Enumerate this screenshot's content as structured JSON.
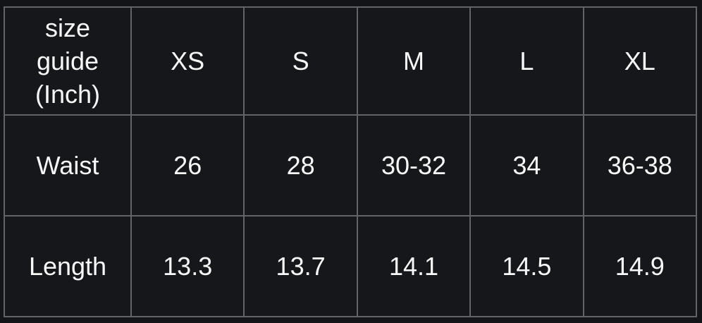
{
  "chart_data": {
    "type": "table",
    "title": "size guide (Inch)",
    "columns": [
      "size guide (Inch)",
      "XS",
      "S",
      "M",
      "L",
      "XL"
    ],
    "rows": [
      [
        "Waist",
        "26",
        "28",
        "30-32",
        "34",
        "36-38"
      ],
      [
        "Length",
        "13.3",
        "13.7",
        "14.1",
        "14.5",
        "14.9"
      ]
    ]
  },
  "colors": {
    "page_background": "#121418",
    "cell_background": "#15171b",
    "grid_border": "#616365",
    "text": "#f8f8f8"
  }
}
